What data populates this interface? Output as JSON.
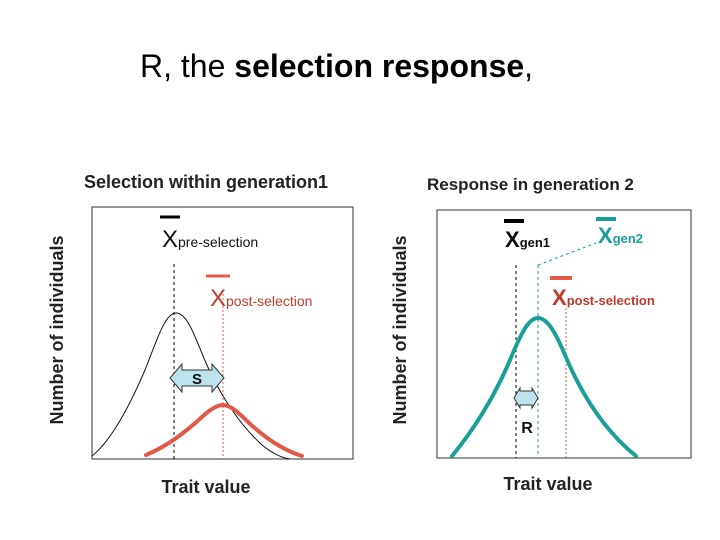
{
  "slide": {
    "title_prefix": "R, the ",
    "title_bold": "selection response",
    "title_suffix": ","
  },
  "left_panel": {
    "title": "Selection within generation1",
    "y_axis_label": "Number of individuals",
    "x_axis_label": "Trait value",
    "pre_label_main": "X",
    "pre_label_sub": "pre-selection",
    "post_label_main": "X",
    "post_label_sub": "post-selection",
    "arrow_label": "S",
    "pre_bar_color": "#000000",
    "post_color": "#e05a47"
  },
  "right_panel": {
    "title": "Response in generation 2",
    "y_axis_label": "Number of individuals",
    "x_axis_label": "Trait value",
    "gen1_label_main": "X",
    "gen1_label_sub": "gen1",
    "gen2_label_main": "X",
    "gen2_label_sub": "gen2",
    "post_label_main": "X",
    "post_label_sub": "post-selection",
    "arrow_label": "R",
    "gen2_color": "#1a9e9a",
    "post_color": "#e05a47"
  }
}
